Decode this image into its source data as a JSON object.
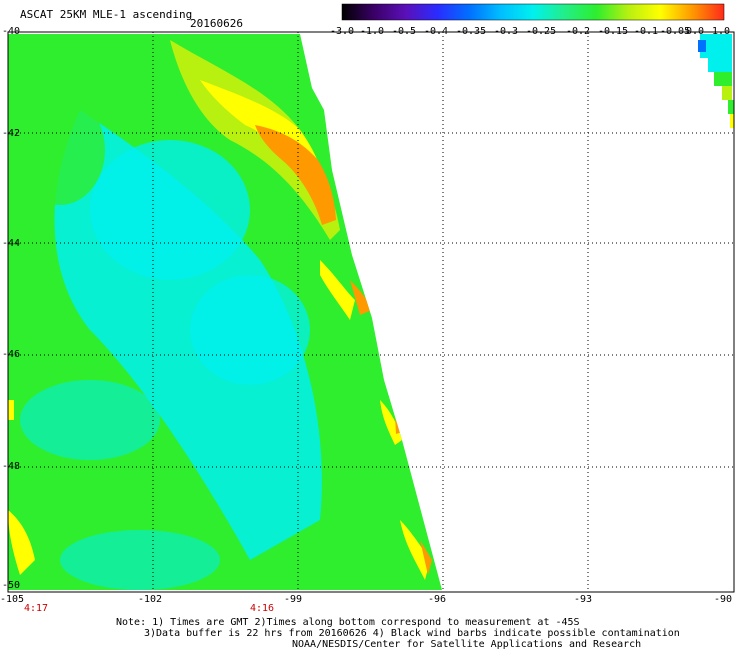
{
  "header": {
    "product_title": "ASCAT 25KM MLE-1 ascending",
    "date": "20160626"
  },
  "colorbar": {
    "labels": [
      "-3.0",
      "-1.0",
      "-0.5",
      "-0.4",
      "-0.35",
      "-0.3",
      "-0.25",
      "-0.2",
      "-0.15",
      "-0.1",
      "-0.05",
      "0.0",
      "1.0"
    ],
    "stops": [
      "#000000",
      "#3a0066",
      "#5a10b8",
      "#2a2cff",
      "#0070ff",
      "#00bfff",
      "#00f0ee",
      "#22ee88",
      "#2eee2e",
      "#b8f010",
      "#ffff00",
      "#ff9900",
      "#ff2a1a"
    ]
  },
  "axes": {
    "lat_labels": [
      "-40",
      "-42",
      "-44",
      "-46",
      "-48",
      "-50"
    ],
    "lon_labels": [
      "-105",
      "-102",
      "-99",
      "-96",
      "-93",
      "-90"
    ]
  },
  "times": [
    "4:17",
    "4:16"
  ],
  "notes": {
    "line1": "Note: 1) Times are GMT 2)Times along bottom correspond to measurement at -45S",
    "line2": "3)Data buffer is 22 hrs from 20160626 4) Black wind barbs indicate possible contamination",
    "line3": "NOAA/NESDIS/Center for Satellite Applications and Research"
  },
  "colors": {
    "cyan": "#00f0ee",
    "green": "#2eee2e",
    "yellow": "#ffff00",
    "orange": "#ff9900",
    "red": "#ff2a1a"
  }
}
